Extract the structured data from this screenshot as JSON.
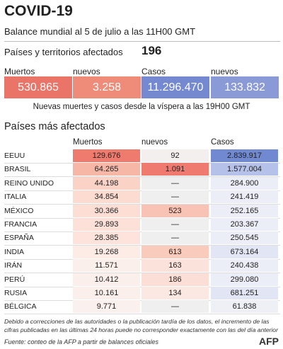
{
  "header": {
    "title": "COVID-19",
    "subtitle": "Balance mundial al 5 de julio a las 11H00 GMT"
  },
  "summary": {
    "territories_label": "Países y territorios afectados",
    "territories": "196",
    "items": [
      {
        "label": "Muertos",
        "value": "530.865"
      },
      {
        "label": "nuevos",
        "value": "3.258"
      },
      {
        "label": "Casos",
        "value": "11.296.470"
      },
      {
        "label": "nuevos",
        "value": "133.832"
      }
    ],
    "note": "Nuevas muertes y casos desde la víspera a las 19H00 GMT"
  },
  "table": {
    "title": "Países más afectados",
    "columns": [
      "Muertos",
      "nuevos",
      "Casos"
    ],
    "rows": [
      [
        "EEUU",
        "129.676",
        "92",
        "2.839.917"
      ],
      [
        "BRASIL",
        "64.265",
        "1.091",
        "1.577.004"
      ],
      [
        "REINO UNIDO",
        "44.198",
        "—",
        "284.900"
      ],
      [
        "ITALIA",
        "34.854",
        "—",
        "241.419"
      ],
      [
        "MÉXICO",
        "30.366",
        "523",
        "252.165"
      ],
      [
        "FRANCIA",
        "29.893",
        "—",
        "203.367"
      ],
      [
        "ESPAÑA",
        "28.385",
        "—",
        "250.545"
      ],
      [
        "INDIA",
        "19.268",
        "613",
        "673.164"
      ],
      [
        "IRÁN",
        "11.571",
        "163",
        "240.438"
      ],
      [
        "PERÚ",
        "10.412",
        "186",
        "299.080"
      ],
      [
        "RUSIA",
        "10.161",
        "134",
        "681.251"
      ],
      [
        "BÉLGICA",
        "9.771",
        "—",
        "61.838"
      ]
    ]
  },
  "footer": {
    "note": "Debido a correcciones de las autoridades o la publicación tardía de los datos, el incremento de las cifras publicadas en las últimas 24 horas puede no corresponder exactamente con las del día anterior",
    "source": "Fuente: conteo de la AFP a partir de balances oficiales",
    "logo": "AFP"
  }
}
